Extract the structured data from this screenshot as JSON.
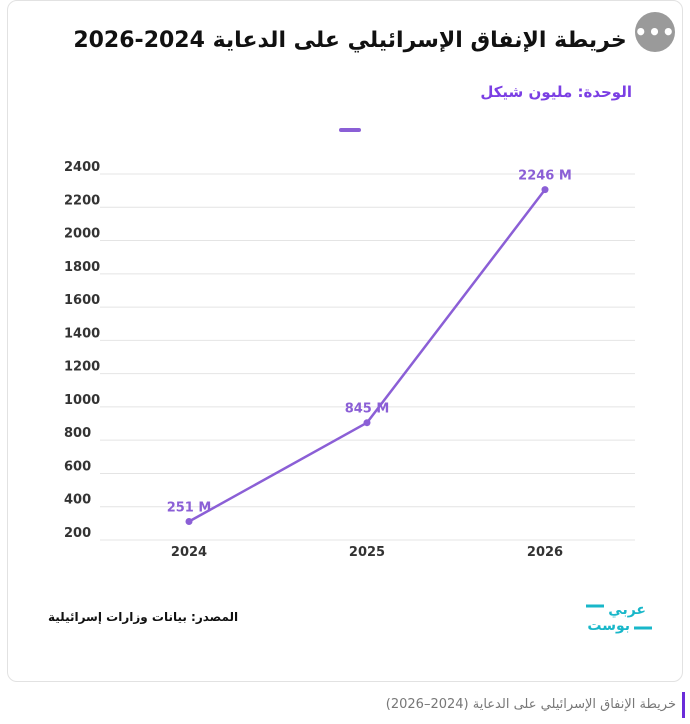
{
  "header": {
    "title": "خريطة الإنفاق الإسرائيلي على الدعاية 2024-2026",
    "unit_label": "الوحدة: مليون شيكل",
    "more_icon": "more-horizontal-icon",
    "more_label": "•••"
  },
  "footer": {
    "source": "المصدر: بيانات وزارات إسرائيلية",
    "logo_text_top": "عربي",
    "logo_text_bottom": "بوست",
    "caption": "خريطة الإنفاق الإسرائيلي على الدعاية (2024–2026)"
  },
  "colors": {
    "accent": "#8b5fd6",
    "title_accent": "#7b3fe4",
    "logo": "#18b7c9",
    "caption_bar": "#6a2bd9"
  },
  "chart_data": {
    "type": "line",
    "categories": [
      "2024",
      "2025",
      "2026"
    ],
    "series": [
      {
        "values": [
          251,
          845,
          2246
        ],
        "labels": [
          "251 M",
          "845 M",
          "2246 M"
        ]
      }
    ],
    "ylim": [
      200,
      2400
    ],
    "yticks": [
      "200",
      "400",
      "600",
      "800",
      "1000",
      "1200",
      "1400",
      "1600",
      "1800",
      "2000",
      "2200",
      "2400"
    ],
    "grid": true,
    "legend": "top-center"
  }
}
